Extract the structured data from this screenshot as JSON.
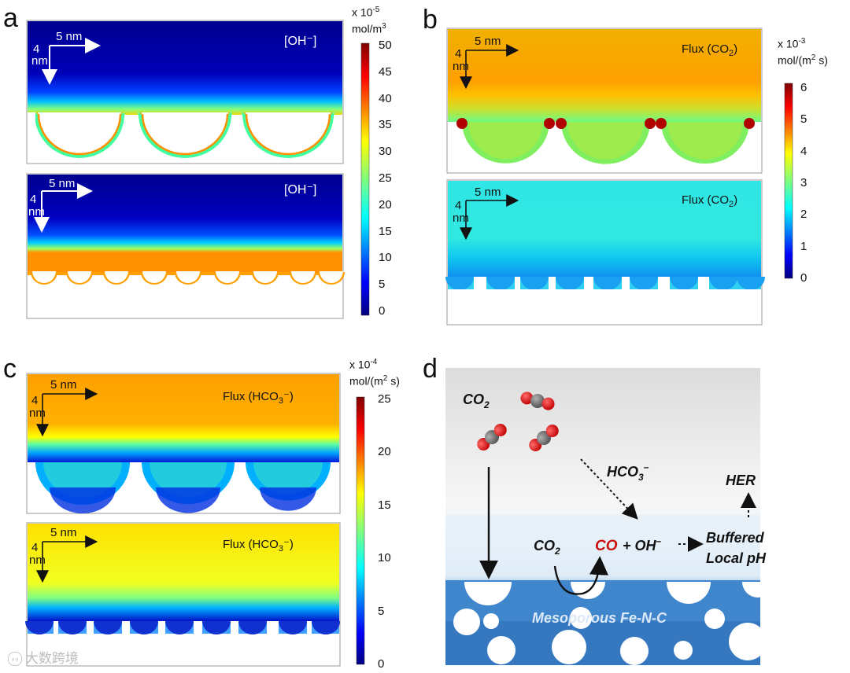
{
  "figure": {
    "panels": {
      "a": {
        "letter": "a",
        "scale_x": "5 nm",
        "scale_y_top": "4",
        "scale_y_bot": "nm",
        "label": "[OH⁻]",
        "colorbar": {
          "unit_line1": "x 10",
          "unit_exp1": "-5",
          "unit_line2": "mol/m",
          "unit_exp2": "3",
          "ticks": [
            "50",
            "45",
            "40",
            "35",
            "30",
            "25",
            "20",
            "15",
            "10",
            "5",
            "0"
          ]
        }
      },
      "b": {
        "letter": "b",
        "scale_x": "5 nm",
        "scale_y_top": "4",
        "scale_y_bot": "nm",
        "label_main": "Flux (CO",
        "label_sub": "2",
        "label_end": ")",
        "colorbar": {
          "unit_line1": "x 10",
          "unit_exp1": "-3",
          "unit_line2": "mol/(m",
          "unit_exp2": "2",
          "unit_end": " s)",
          "ticks": [
            "6",
            "5",
            "4",
            "3",
            "2",
            "1",
            "0"
          ]
        }
      },
      "c": {
        "letter": "c",
        "scale_x": "5 nm",
        "scale_y_top": "4",
        "scale_y_bot": "nm",
        "label_main": "Flux (HCO",
        "label_sub": "3",
        "label_end": "⁻)",
        "colorbar": {
          "unit_line1": "x 10",
          "unit_exp1": "-4",
          "unit_line2": "mol/(m",
          "unit_exp2": "2",
          "unit_end": " s)",
          "ticks": [
            "25",
            "20",
            "15",
            "10",
            "5",
            "0"
          ]
        }
      },
      "d": {
        "letter": "d",
        "co2_main": "CO",
        "co2_sub": "2",
        "hco3_main": "HCO",
        "hco3_sub": "3",
        "hco3_sup": "–",
        "her": "HER",
        "co2b_main": "CO",
        "co2b_sub": "2",
        "co": "CO",
        "plus_oh": "+ OH",
        "oh_sup": "–",
        "buffered1": "Buffered",
        "buffered2": "Local pH",
        "meso": "Mesoporous Fe-N-C"
      }
    },
    "watermark": "大数跨境",
    "colors": {
      "co_red": "#cc1111",
      "jet_dark": "#00007f"
    }
  }
}
